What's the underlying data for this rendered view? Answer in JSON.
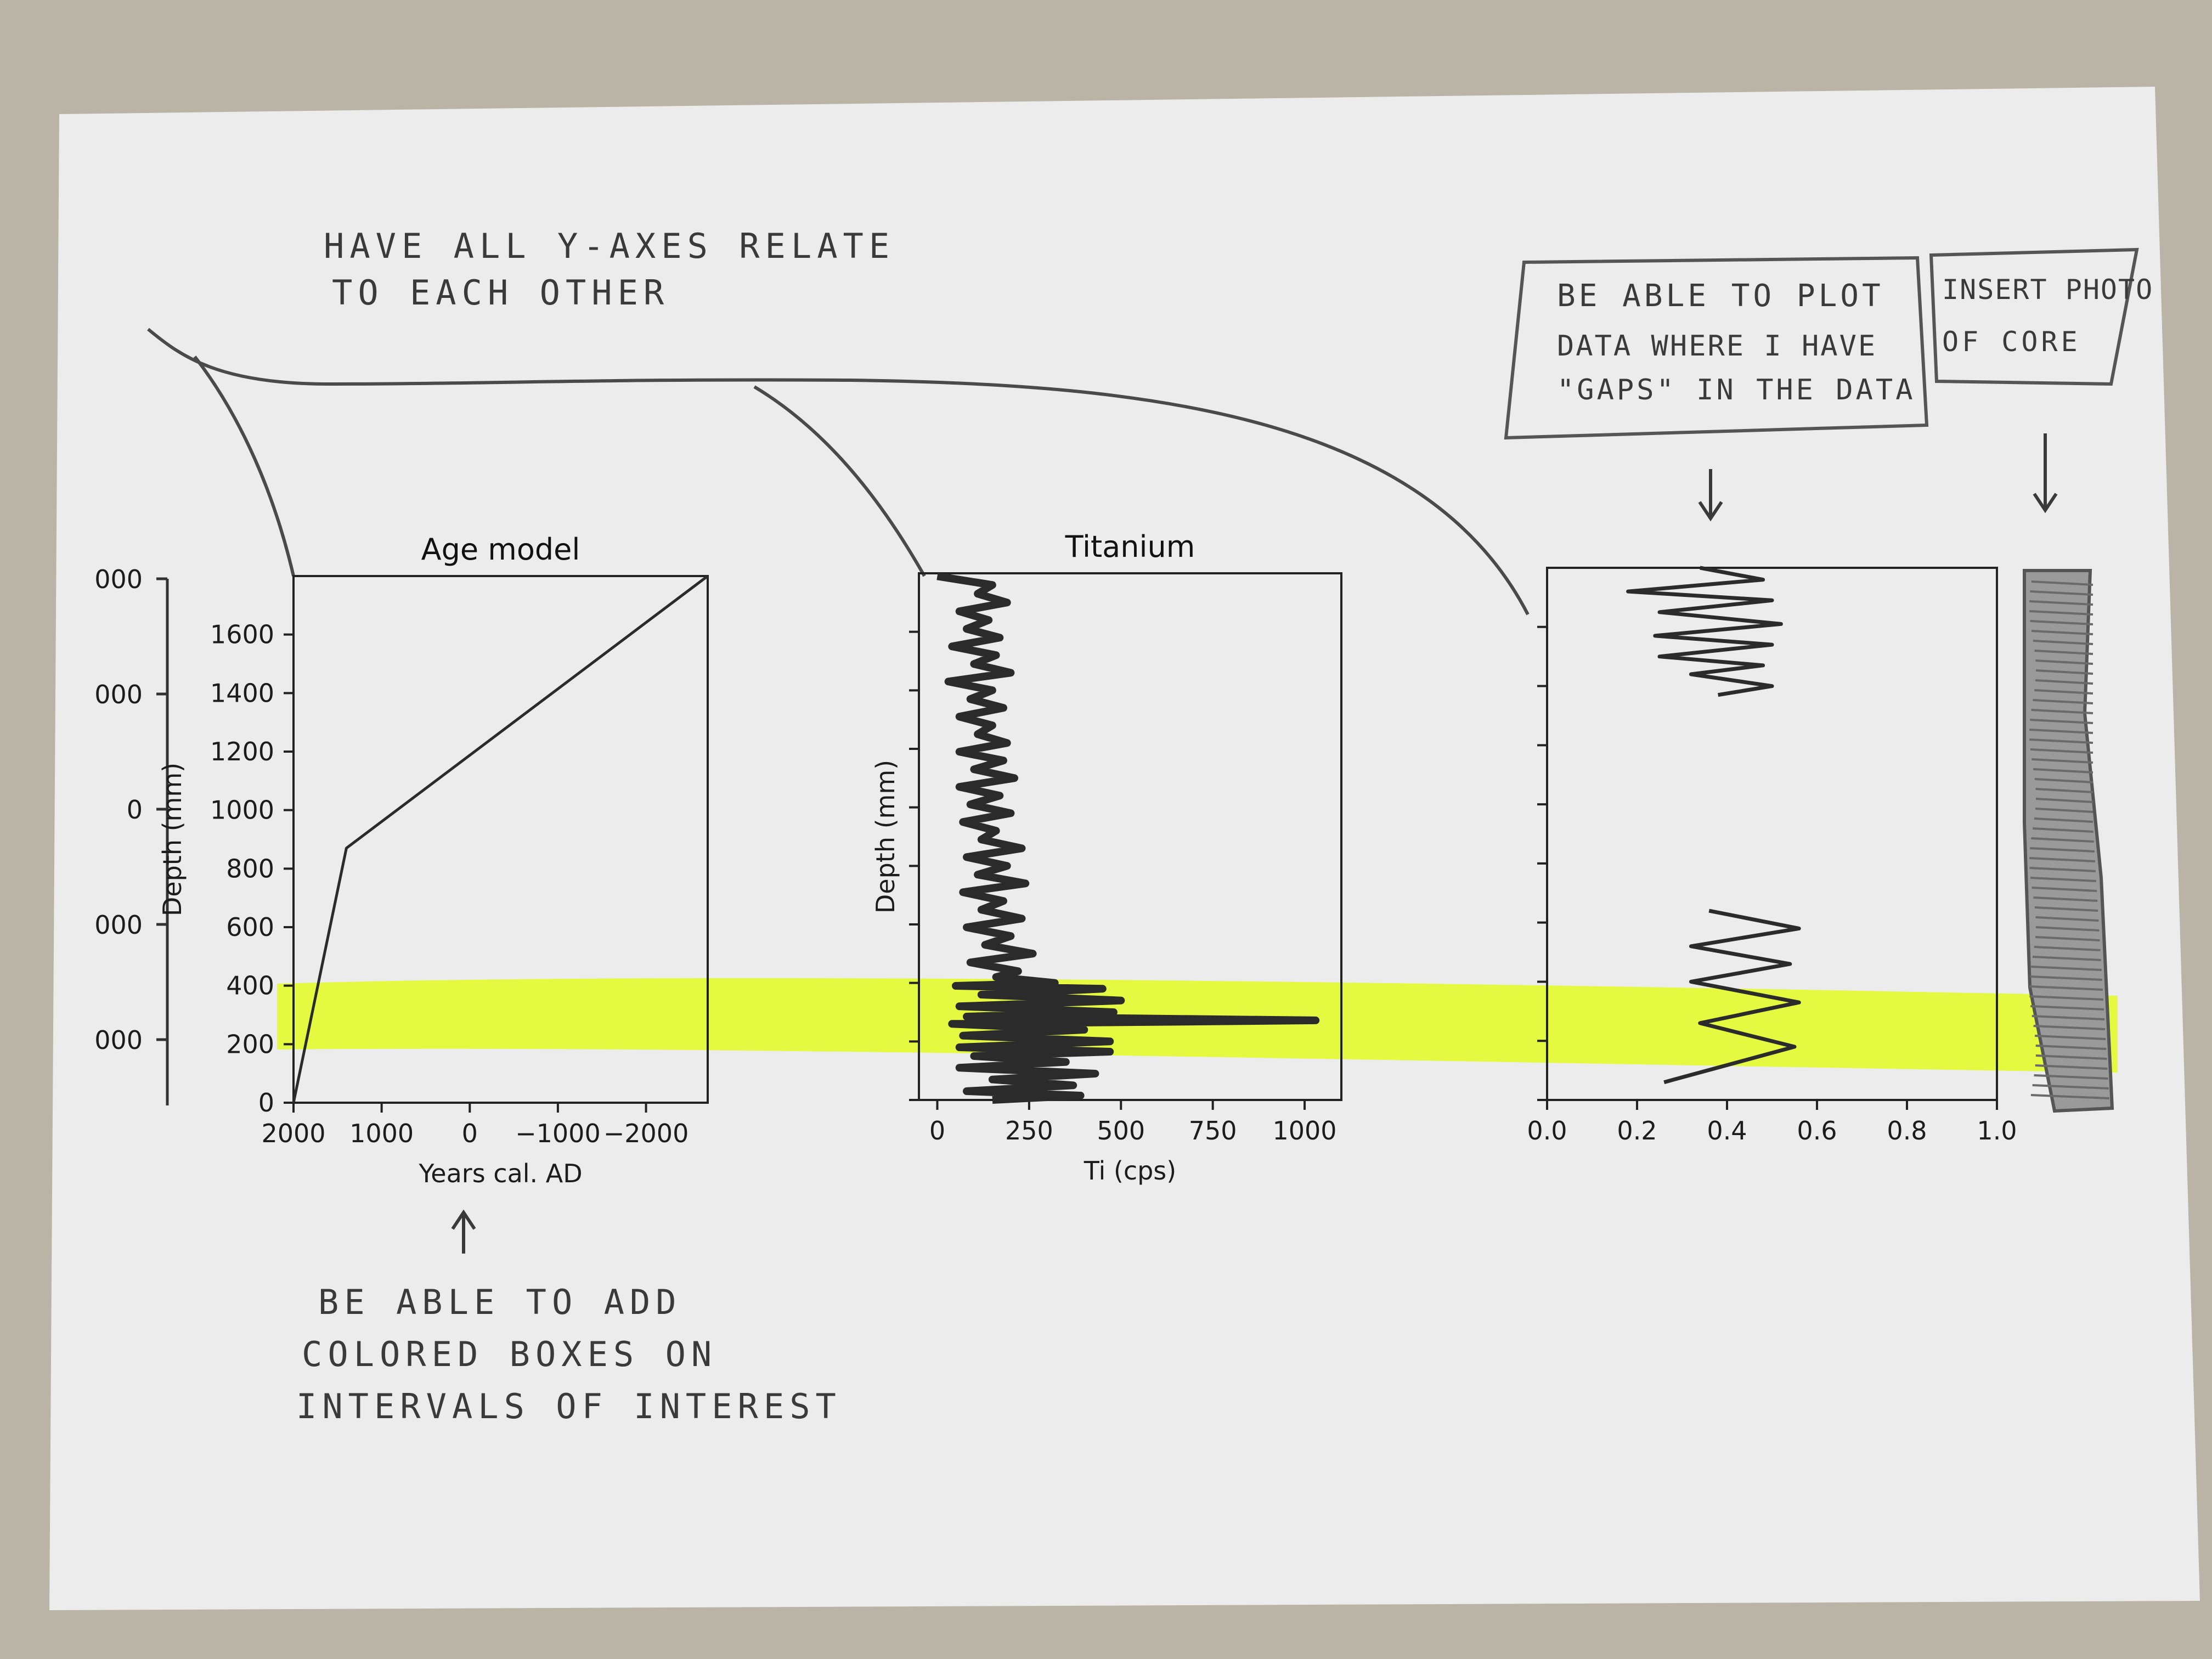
{
  "annotations": {
    "top_note": [
      "HAVE ALL Y-AXES RELATE",
      "TO EACH OTHER"
    ],
    "gaps_note": [
      "BE ABLE TO PLOT",
      "DATA WHERE I HAVE",
      "\"GAPS\" IN THE DATA"
    ],
    "photo_note": [
      "INSERT PHOTO",
      "OF CORE"
    ],
    "boxes_note": [
      "BE ABLE TO ADD",
      "COLORED BOXES ON",
      "INTERVALS OF INTEREST"
    ]
  },
  "colors": {
    "highlight": "#e2fc2e",
    "ink": "#2b2b2b",
    "paper": "#ececed",
    "table": "#b9b4a5"
  },
  "left_axis_fragments": [
    "000",
    "000",
    "0",
    "000",
    "000"
  ],
  "chart_data": [
    {
      "type": "line",
      "title": "Age model",
      "xlabel": "Years cal. AD",
      "ylabel": "Depth (mm)",
      "xlim": [
        2000,
        -2700
      ],
      "ylim": [
        0,
        1800
      ],
      "xticks": [
        2000,
        1000,
        0,
        -1000,
        -2000
      ],
      "xtick_labels": [
        "2000",
        "1000",
        "0",
        "−1000",
        "−2000"
      ],
      "yticks": [
        0,
        200,
        400,
        600,
        800,
        1000,
        1200,
        1400,
        1600
      ],
      "x": [
        2000,
        1400,
        -2700
      ],
      "y": [
        0,
        870,
        1800
      ]
    },
    {
      "type": "line",
      "title": "Titanium",
      "xlabel": "Ti (cps)",
      "ylabel": "Depth (mm)",
      "xlim": [
        -50,
        1100
      ],
      "ylim": [
        0,
        1800
      ],
      "xticks": [
        0,
        250,
        500,
        750,
        1000
      ],
      "x": [
        0,
        150,
        110,
        190,
        60,
        140,
        80,
        170,
        40,
        160,
        100,
        200,
        30,
        150,
        90,
        180,
        60,
        150,
        110,
        190,
        60,
        180,
        100,
        210,
        60,
        170,
        90,
        200,
        70,
        160,
        120,
        230,
        80,
        190,
        110,
        240,
        70,
        180,
        120,
        230,
        80,
        200,
        130,
        260,
        90,
        220,
        160,
        320,
        50,
        450,
        120,
        500,
        60,
        480,
        80,
        1030,
        40,
        400,
        70,
        470,
        60,
        470,
        100,
        350,
        60,
        430,
        150,
        370,
        80,
        390,
        150
      ],
      "y": [
        1790,
        1760,
        1730,
        1700,
        1670,
        1640,
        1610,
        1580,
        1550,
        1520,
        1490,
        1460,
        1430,
        1400,
        1370,
        1340,
        1310,
        1280,
        1250,
        1220,
        1190,
        1160,
        1130,
        1100,
        1070,
        1040,
        1010,
        980,
        950,
        920,
        890,
        860,
        830,
        800,
        770,
        740,
        710,
        680,
        650,
        620,
        590,
        560,
        530,
        500,
        470,
        440,
        420,
        400,
        390,
        380,
        360,
        340,
        320,
        300,
        285,
        272,
        260,
        240,
        220,
        200,
        180,
        165,
        150,
        130,
        110,
        90,
        70,
        50,
        30,
        15,
        0
      ]
    },
    {
      "type": "line",
      "title": "",
      "xlabel": "",
      "ylabel": "",
      "xlim": [
        0,
        1
      ],
      "ylim": [
        0,
        1800
      ],
      "xticks": [
        0.0,
        0.2,
        0.4,
        0.6,
        0.8,
        1.0
      ],
      "xtick_labels": [
        "0.0",
        "0.2",
        "0.4",
        "0.6",
        "0.8",
        "1.0"
      ],
      "segments": [
        {
          "x": [
            0.34,
            0.48,
            0.18,
            0.5,
            0.25,
            0.52,
            0.24,
            0.5,
            0.25,
            0.48,
            0.32,
            0.5,
            0.38
          ],
          "y": [
            1800,
            1760,
            1720,
            1690,
            1650,
            1610,
            1570,
            1540,
            1500,
            1470,
            1440,
            1400,
            1370
          ]
        },
        {
          "x": [
            0.36,
            0.56,
            0.32,
            0.54,
            0.32,
            0.56,
            0.34,
            0.55,
            0.26
          ],
          "y": [
            640,
            580,
            520,
            460,
            400,
            330,
            260,
            180,
            60
          ]
        }
      ]
    }
  ]
}
